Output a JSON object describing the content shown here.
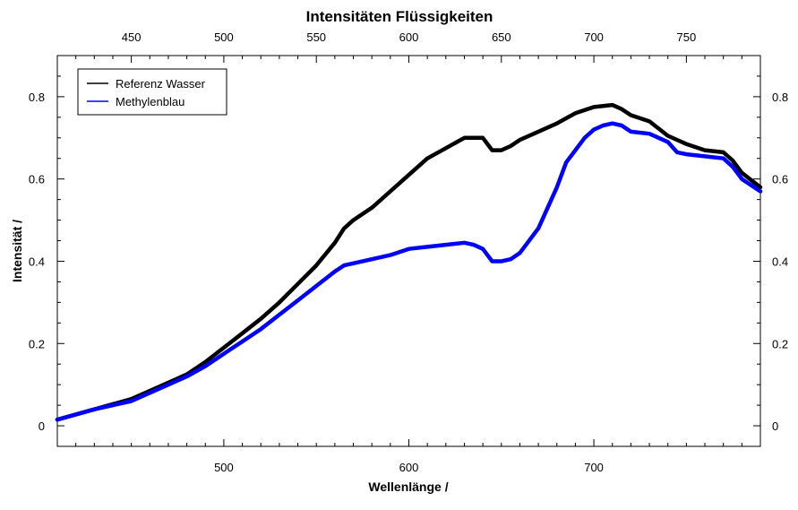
{
  "chart_data": {
    "type": "line",
    "title": "Intensitäten Flüssigkeiten",
    "xlabel": "Wellenlänge /",
    "ylabel": "Intensität /",
    "xlim": [
      410,
      790
    ],
    "ylim": [
      -0.05,
      0.9
    ],
    "x_ticks": [
      500,
      600,
      700
    ],
    "x_top_ticks": [
      450,
      500,
      550,
      600,
      650,
      700,
      750
    ],
    "y_ticks": [
      0,
      0.2,
      0.4,
      0.6,
      0.8
    ],
    "y_tick_labels": [
      "0",
      "0.2",
      "0.4",
      "0.6",
      "0.8"
    ],
    "grid": false,
    "legend_position": "top-left",
    "series": [
      {
        "name": "Referenz Wasser",
        "color": "#000000",
        "x": [
          410,
          430,
          450,
          460,
          470,
          480,
          490,
          500,
          510,
          520,
          530,
          540,
          550,
          560,
          565,
          570,
          580,
          590,
          600,
          610,
          620,
          630,
          635,
          640,
          645,
          650,
          655,
          660,
          670,
          680,
          690,
          700,
          710,
          715,
          720,
          730,
          740,
          750,
          760,
          770,
          775,
          780,
          790
        ],
        "y": [
          0.015,
          0.04,
          0.065,
          0.085,
          0.105,
          0.125,
          0.155,
          0.19,
          0.225,
          0.26,
          0.3,
          0.345,
          0.39,
          0.445,
          0.48,
          0.5,
          0.53,
          0.57,
          0.61,
          0.65,
          0.675,
          0.7,
          0.7,
          0.7,
          0.67,
          0.67,
          0.68,
          0.695,
          0.715,
          0.735,
          0.76,
          0.775,
          0.78,
          0.77,
          0.755,
          0.74,
          0.705,
          0.685,
          0.67,
          0.665,
          0.645,
          0.615,
          0.58
        ]
      },
      {
        "name": "Methylenblau",
        "color": "#0000ff",
        "x": [
          410,
          430,
          450,
          460,
          470,
          480,
          490,
          500,
          510,
          520,
          530,
          540,
          550,
          560,
          565,
          570,
          580,
          590,
          600,
          610,
          620,
          630,
          635,
          640,
          645,
          650,
          655,
          660,
          670,
          680,
          685,
          690,
          695,
          700,
          705,
          710,
          715,
          720,
          730,
          740,
          745,
          750,
          760,
          770,
          775,
          780,
          790
        ],
        "y": [
          0.015,
          0.04,
          0.06,
          0.08,
          0.1,
          0.12,
          0.145,
          0.175,
          0.205,
          0.235,
          0.27,
          0.305,
          0.34,
          0.375,
          0.39,
          0.395,
          0.405,
          0.415,
          0.43,
          0.435,
          0.44,
          0.445,
          0.44,
          0.43,
          0.4,
          0.4,
          0.405,
          0.42,
          0.48,
          0.58,
          0.64,
          0.67,
          0.7,
          0.72,
          0.73,
          0.735,
          0.73,
          0.715,
          0.71,
          0.69,
          0.665,
          0.66,
          0.655,
          0.65,
          0.63,
          0.6,
          0.57
        ]
      }
    ]
  }
}
